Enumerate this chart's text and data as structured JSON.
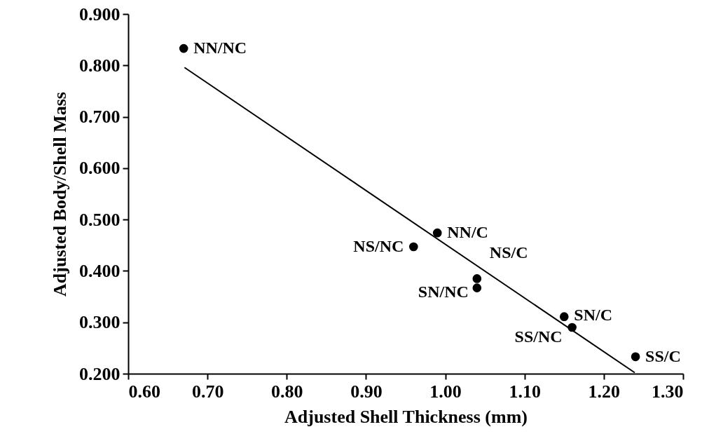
{
  "chart_data": {
    "type": "scatter",
    "xlabel": "Adjusted Shell Thickness (mm)",
    "ylabel": "Adjusted Body/Shell Mass",
    "series": [
      {
        "color": "#000000",
        "marker": "circle",
        "x": [
          0.67,
          0.99,
          0.96,
          1.04,
          1.04,
          1.15,
          1.16,
          1.24
        ],
        "values": [
          0.833,
          0.474,
          0.447,
          0.385,
          0.367,
          0.311,
          0.29,
          0.233
        ],
        "value_labels": [
          "NN/NC",
          "NN/C",
          "NS/NC",
          "NS/C",
          "SN/NC",
          "SN/C",
          "SS/NC",
          "SS/C"
        ]
      },
      {
        "type": "line",
        "color": "#000000",
        "marker": "none",
        "line_style": "solid",
        "x": [
          0.671,
          1.239
        ],
        "values": [
          0.796,
          0.202
        ]
      }
    ],
    "xlim": [
      0.6,
      1.3
    ],
    "ylim": [
      0.2,
      0.9
    ],
    "xticks": [
      {
        "value": 0.6,
        "label": "0.60"
      },
      {
        "value": 0.7,
        "label": "0.70"
      },
      {
        "value": 0.8,
        "label": "0.80"
      },
      {
        "value": 0.9,
        "label": "0.90"
      },
      {
        "value": 1.0,
        "label": "1.00"
      },
      {
        "value": 1.1,
        "label": "1.10"
      },
      {
        "value": 1.2,
        "label": "1.20"
      },
      {
        "value": 1.3,
        "label": "1.30"
      }
    ],
    "yticks": [
      {
        "value": 0.2,
        "label": "0.200"
      },
      {
        "value": 0.3,
        "label": "0.300"
      },
      {
        "value": 0.4,
        "label": "0.400"
      },
      {
        "value": 0.5,
        "label": "0.500"
      },
      {
        "value": 0.6,
        "label": "0.600"
      },
      {
        "value": 0.7,
        "label": "0.700"
      },
      {
        "value": 0.8,
        "label": "0.800"
      },
      {
        "value": 0.9,
        "label": "0.900"
      }
    ]
  }
}
